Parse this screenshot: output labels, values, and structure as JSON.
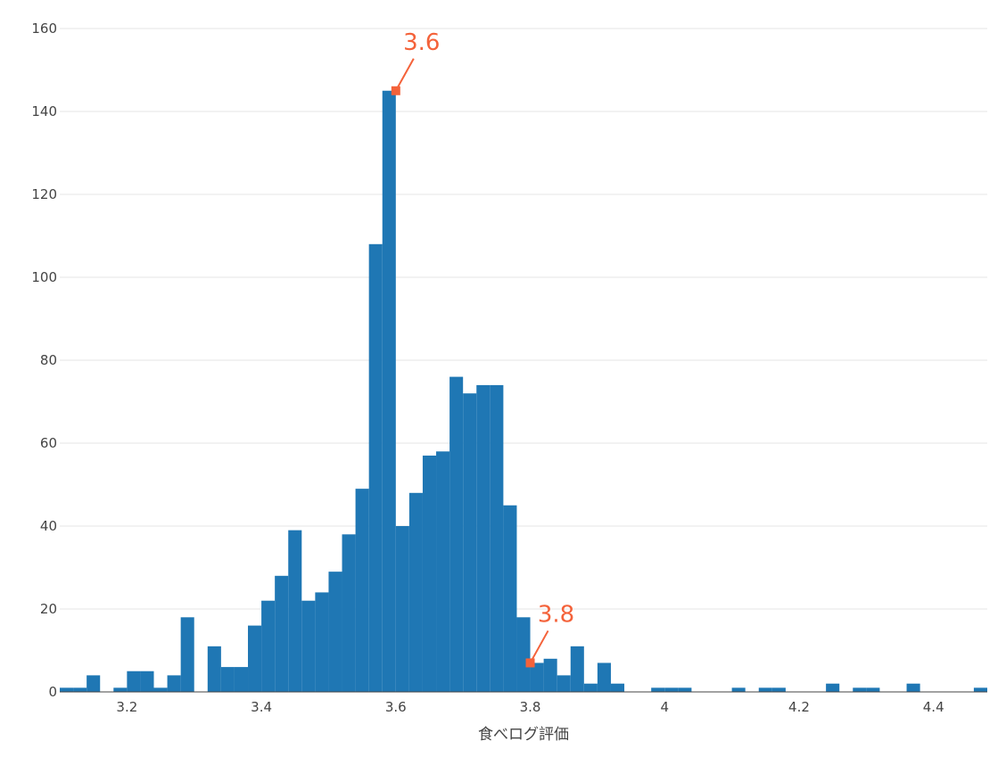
{
  "chart_data": {
    "type": "bar",
    "xlabel": "食べログ評価",
    "ylabel": "",
    "xlim": [
      3.1,
      4.48
    ],
    "ylim": [
      0,
      160
    ],
    "bin_width": 0.02,
    "grid": true,
    "bar_color": "#1f77b4",
    "x_ticks": [
      "3.2",
      "3.4",
      "3.6",
      "3.8",
      "4",
      "4.2",
      "4.4"
    ],
    "y_ticks": [
      "0",
      "20",
      "40",
      "60",
      "80",
      "100",
      "120",
      "140",
      "160"
    ],
    "bins": [
      {
        "x": 3.1,
        "y": 1
      },
      {
        "x": 3.12,
        "y": 1
      },
      {
        "x": 3.14,
        "y": 4
      },
      {
        "x": 3.16,
        "y": 0
      },
      {
        "x": 3.18,
        "y": 1
      },
      {
        "x": 3.2,
        "y": 5
      },
      {
        "x": 3.22,
        "y": 5
      },
      {
        "x": 3.24,
        "y": 1
      },
      {
        "x": 3.26,
        "y": 4
      },
      {
        "x": 3.28,
        "y": 18
      },
      {
        "x": 3.3,
        "y": 0
      },
      {
        "x": 3.32,
        "y": 11
      },
      {
        "x": 3.34,
        "y": 6
      },
      {
        "x": 3.36,
        "y": 6
      },
      {
        "x": 3.38,
        "y": 16
      },
      {
        "x": 3.4,
        "y": 22
      },
      {
        "x": 3.42,
        "y": 28
      },
      {
        "x": 3.44,
        "y": 39
      },
      {
        "x": 3.46,
        "y": 22
      },
      {
        "x": 3.48,
        "y": 24
      },
      {
        "x": 3.5,
        "y": 29
      },
      {
        "x": 3.52,
        "y": 38
      },
      {
        "x": 3.54,
        "y": 49
      },
      {
        "x": 3.56,
        "y": 108
      },
      {
        "x": 3.58,
        "y": 145
      },
      {
        "x": 3.6,
        "y": 40
      },
      {
        "x": 3.62,
        "y": 48
      },
      {
        "x": 3.64,
        "y": 57
      },
      {
        "x": 3.66,
        "y": 58
      },
      {
        "x": 3.68,
        "y": 76
      },
      {
        "x": 3.7,
        "y": 72
      },
      {
        "x": 3.72,
        "y": 74
      },
      {
        "x": 3.74,
        "y": 74
      },
      {
        "x": 3.76,
        "y": 45
      },
      {
        "x": 3.78,
        "y": 18
      },
      {
        "x": 3.8,
        "y": 7
      },
      {
        "x": 3.82,
        "y": 8
      },
      {
        "x": 3.84,
        "y": 4
      },
      {
        "x": 3.86,
        "y": 11
      },
      {
        "x": 3.88,
        "y": 2
      },
      {
        "x": 3.9,
        "y": 7
      },
      {
        "x": 3.92,
        "y": 2
      },
      {
        "x": 3.94,
        "y": 0
      },
      {
        "x": 3.96,
        "y": 0
      },
      {
        "x": 3.98,
        "y": 1
      },
      {
        "x": 4.0,
        "y": 1
      },
      {
        "x": 4.02,
        "y": 1
      },
      {
        "x": 4.04,
        "y": 0
      },
      {
        "x": 4.06,
        "y": 0
      },
      {
        "x": 4.08,
        "y": 0
      },
      {
        "x": 4.1,
        "y": 1
      },
      {
        "x": 4.12,
        "y": 0
      },
      {
        "x": 4.14,
        "y": 1
      },
      {
        "x": 4.16,
        "y": 1
      },
      {
        "x": 4.18,
        "y": 0
      },
      {
        "x": 4.2,
        "y": 0
      },
      {
        "x": 4.22,
        "y": 0
      },
      {
        "x": 4.24,
        "y": 2
      },
      {
        "x": 4.26,
        "y": 0
      },
      {
        "x": 4.28,
        "y": 1
      },
      {
        "x": 4.3,
        "y": 1
      },
      {
        "x": 4.32,
        "y": 0
      },
      {
        "x": 4.34,
        "y": 0
      },
      {
        "x": 4.36,
        "y": 2
      },
      {
        "x": 4.38,
        "y": 0
      },
      {
        "x": 4.4,
        "y": 0
      },
      {
        "x": 4.42,
        "y": 0
      },
      {
        "x": 4.44,
        "y": 0
      },
      {
        "x": 4.46,
        "y": 1
      }
    ],
    "annotations": [
      {
        "text": "3.6",
        "x": 3.6,
        "y": 145,
        "color": "#f4623a"
      },
      {
        "text": "3.8",
        "x": 3.8,
        "y": 7,
        "color": "#f4623a"
      }
    ]
  }
}
